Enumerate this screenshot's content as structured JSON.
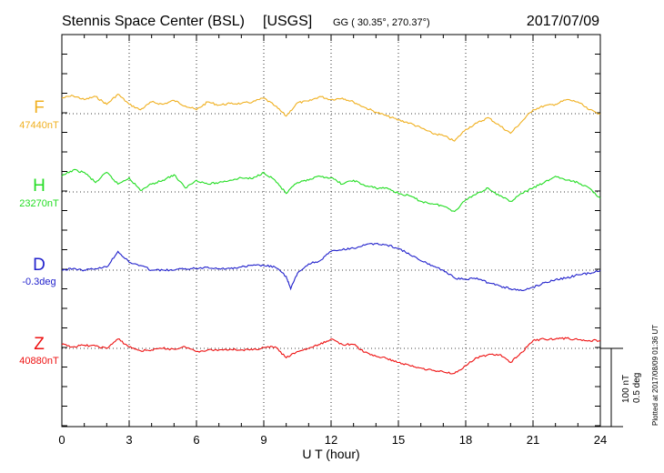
{
  "header": {
    "station": "Stennis Space Center (BSL)",
    "agency": "[USGS]",
    "coords": "GG ( 30.35°, 270.37°)",
    "date": "2017/07/09"
  },
  "scale_bar": {
    "line1": "100 nT",
    "line2": "0.5 deg"
  },
  "plotted_note": "Plotted at 2017/08/09 01:36 UT",
  "chart_data": {
    "type": "line",
    "xlabel": "U T (hour)",
    "xlim": [
      0,
      24
    ],
    "xticks": [
      "0",
      "3",
      "6",
      "9",
      "12",
      "15",
      "18",
      "21",
      "24"
    ],
    "scale": "100 nT per division (D: 0.5 deg per division)",
    "grid": true,
    "series": [
      {
        "name": "F",
        "baseline_label": "47440nT",
        "color": "#f0b020",
        "unit": "nT",
        "x": [
          0,
          0.5,
          1,
          1.5,
          2,
          2.5,
          3,
          3.5,
          4,
          4.5,
          5,
          5.5,
          6,
          6.5,
          7,
          7.5,
          8,
          8.5,
          9,
          9.5,
          10,
          10.5,
          11,
          11.5,
          12,
          12.5,
          13,
          13.5,
          14,
          14.5,
          15,
          15.5,
          16,
          16.5,
          17,
          17.5,
          18,
          18.5,
          19,
          19.5,
          20,
          20.5,
          21,
          21.5,
          22,
          22.5,
          23,
          23.5,
          24
        ],
        "y": [
          20,
          23,
          18,
          22,
          12,
          25,
          12,
          5,
          15,
          12,
          17,
          10,
          5,
          15,
          11,
          13,
          13,
          15,
          20,
          10,
          -3,
          14,
          16,
          22,
          18,
          20,
          15,
          8,
          2,
          -3,
          -8,
          -12,
          -18,
          -25,
          -28,
          -35,
          -20,
          -12,
          -5,
          -15,
          -25,
          -10,
          5,
          10,
          12,
          18,
          15,
          5,
          0
        ]
      },
      {
        "name": "H",
        "baseline_label": "23270nT",
        "color": "#22dd22",
        "unit": "nT",
        "x": [
          0,
          0.5,
          1,
          1.5,
          2,
          2.5,
          3,
          3.5,
          4,
          4.5,
          5,
          5.5,
          6,
          6.5,
          7,
          7.5,
          8,
          8.5,
          9,
          9.5,
          10,
          10.5,
          11,
          11.5,
          12,
          12.5,
          13,
          13.5,
          14,
          14.5,
          15,
          15.5,
          16,
          16.5,
          17,
          17.5,
          18,
          18.5,
          19,
          19.5,
          20,
          20.5,
          21,
          21.5,
          22,
          22.5,
          23,
          23.5,
          24
        ],
        "y": [
          20,
          28,
          25,
          12,
          25,
          10,
          18,
          2,
          10,
          15,
          22,
          5,
          15,
          10,
          12,
          15,
          18,
          17,
          25,
          15,
          -2,
          12,
          15,
          20,
          18,
          10,
          15,
          8,
          5,
          5,
          -2,
          -5,
          -12,
          -15,
          -18,
          -25,
          -10,
          -2,
          5,
          -5,
          -12,
          -2,
          5,
          12,
          20,
          15,
          12,
          5,
          -8
        ]
      },
      {
        "name": "D",
        "baseline_label": "-0.3deg",
        "color": "#2222cc",
        "unit": "deg",
        "x": [
          0,
          0.5,
          1,
          1.5,
          2,
          2.5,
          3,
          3.5,
          4,
          4.5,
          5,
          5.5,
          6,
          6.5,
          7,
          7.5,
          8,
          8.5,
          9,
          9.5,
          10,
          10.2,
          10.5,
          11,
          11.5,
          12,
          12.5,
          13,
          13.5,
          14,
          14.5,
          15,
          15.5,
          16,
          16.5,
          17,
          17.5,
          18,
          18.5,
          19,
          19.5,
          20,
          20.5,
          21,
          21.5,
          22,
          22.5,
          23,
          23.5,
          24
        ],
        "y": [
          0,
          0.01,
          0,
          0.01,
          0.02,
          0.12,
          0.05,
          0.03,
          0,
          0,
          0,
          0.01,
          0.01,
          0.02,
          0.01,
          0.01,
          0.02,
          0.03,
          0.03,
          0.02,
          -0.04,
          -0.12,
          -0.02,
          0.04,
          0.06,
          0.12,
          0.13,
          0.14,
          0.16,
          0.17,
          0.16,
          0.14,
          0.1,
          0.06,
          0.03,
          0,
          -0.05,
          -0.06,
          -0.05,
          -0.08,
          -0.1,
          -0.12,
          -0.13,
          -0.11,
          -0.08,
          -0.06,
          -0.05,
          -0.03,
          -0.02,
          0
        ]
      },
      {
        "name": "Z",
        "baseline_label": "40880nT",
        "color": "#ee1111",
        "unit": "nT",
        "x": [
          0,
          0.5,
          1,
          1.5,
          2,
          2.5,
          3,
          3.5,
          4,
          4.5,
          5,
          5.5,
          6,
          6.5,
          7,
          7.5,
          8,
          8.5,
          9,
          9.5,
          10,
          10.5,
          11,
          11.5,
          12,
          12.5,
          13,
          13.5,
          14,
          14.5,
          15,
          15.5,
          16,
          16.5,
          17,
          17.5,
          18,
          18.5,
          19,
          19.5,
          20,
          20.5,
          21,
          21.5,
          22,
          22.5,
          23,
          23.5,
          24
        ],
        "y": [
          5,
          2,
          4,
          3,
          0,
          12,
          2,
          -3,
          -2,
          0,
          -1,
          2,
          -4,
          -2,
          -2,
          -1,
          -2,
          -2,
          1,
          2,
          -12,
          -4,
          0,
          5,
          12,
          5,
          5,
          -5,
          -10,
          -13,
          -18,
          -22,
          -25,
          -28,
          -30,
          -32,
          -22,
          -12,
          -8,
          -8,
          -18,
          -5,
          10,
          12,
          12,
          13,
          11,
          10,
          10
        ]
      }
    ]
  }
}
